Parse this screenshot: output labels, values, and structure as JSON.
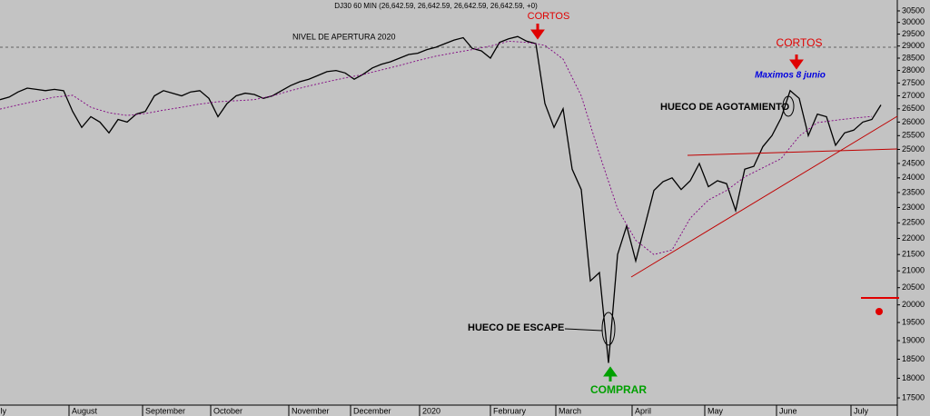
{
  "chart_data": {
    "type": "line",
    "title": "DJ30 60 MIN (26,642.59, 26,642.59, 26,642.59, 26,642.59, +0)",
    "log_scale": true,
    "grid": false,
    "ylim": [
      17320,
      30980
    ],
    "yticks": [
      30500,
      30000,
      29500,
      29000,
      28500,
      28000,
      27500,
      27000,
      26500,
      26000,
      25500,
      25000,
      24500,
      24000,
      23500,
      23000,
      22500,
      22000,
      21500,
      21000,
      20500,
      20000,
      19500,
      19000,
      18500,
      18000,
      17500
    ],
    "month_labels": [
      "July",
      "August",
      "September",
      "October",
      "November",
      "December",
      "2020",
      "February",
      "March",
      "April",
      "May",
      "June",
      "July"
    ],
    "opening_level": 28950,
    "opening_label": "NIVEL DE APERTURA 2020",
    "annotations": [
      "CORTOS",
      "CORTOS",
      "Maximos 8 junio",
      "HUECO DE AGOTAMIENTO",
      "HUECO DE ESCAPE",
      "COMPRAR"
    ],
    "series": [
      {
        "color": "#000000",
        "line_style": "solid",
        "values": [
          26850,
          26950,
          27150,
          27300,
          27250,
          27200,
          27250,
          27200,
          26400,
          25800,
          26200,
          26000,
          25600,
          26100,
          26000,
          26300,
          26400,
          27000,
          27200,
          27100,
          27000,
          27150,
          27200,
          26900,
          26200,
          26700,
          27000,
          27100,
          27050,
          26900,
          27000,
          27200,
          27400,
          27550,
          27650,
          27800,
          27950,
          28000,
          27900,
          27650,
          27850,
          28100,
          28250,
          28350,
          28500,
          28650,
          28700,
          28850,
          28950,
          29100,
          29250,
          29350,
          28900,
          28800,
          28500,
          29150,
          29300,
          29400,
          29200,
          29100,
          26700,
          25800,
          26500,
          24300,
          23600,
          20700,
          20950,
          18400,
          21500,
          22400,
          21300,
          22400,
          23570,
          23870,
          24000,
          23600,
          23900,
          24500,
          23700,
          23900,
          23800,
          22900,
          24300,
          24400,
          25100,
          25500,
          26150,
          27200,
          26900,
          25500,
          26300,
          26200,
          25150,
          25600,
          25700,
          26000,
          26100,
          26650
        ]
      },
      {
        "color": "#800080",
        "line_style": "dotted",
        "values": [
          26490,
          26650,
          26800,
          26950,
          27020,
          26560,
          26350,
          26250,
          26320,
          26450,
          26560,
          26680,
          26770,
          26810,
          26850,
          27000,
          27200,
          27380,
          27550,
          27700,
          27840,
          28020,
          28200,
          28400,
          28580,
          28720,
          28850,
          29000,
          29200,
          29150,
          29030,
          28460,
          27000,
          24830,
          22960,
          21940,
          21500,
          21640,
          22650,
          23250,
          23570,
          24030,
          24350,
          24670,
          25480,
          25980,
          26070,
          26150,
          26210
        ]
      }
    ]
  }
}
